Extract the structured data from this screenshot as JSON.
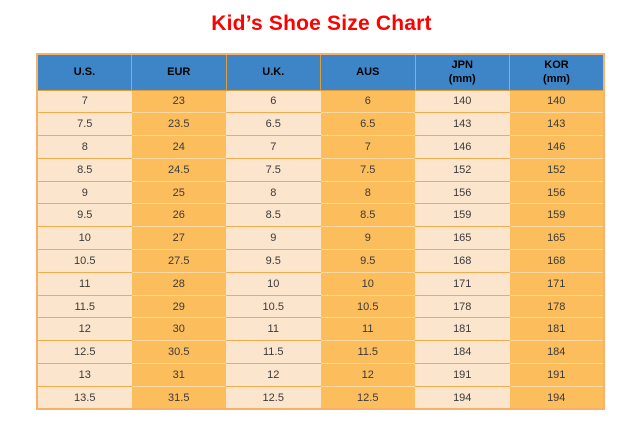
{
  "page": {
    "title": "Kid’s Shoe Size Chart"
  },
  "colors": {
    "title": "#ff0000",
    "header_bg": "#3d85c6",
    "column_light": "#fce5cd",
    "column_orange": "#fcbd5c",
    "table_border": "#f6b26b",
    "header_divider": "#dd9f3d",
    "row_divider_on_light": "#f2ab4e",
    "row_divider_on_orange": "#fdd9a2",
    "cell_text": "#3a3a3a"
  },
  "chart_data": {
    "type": "table",
    "title": "Kid’s Shoe Size Chart",
    "columns": [
      {
        "label": "U.S.",
        "sub": ""
      },
      {
        "label": "EUR",
        "sub": ""
      },
      {
        "label": "U.K.",
        "sub": ""
      },
      {
        "label": "AUS",
        "sub": ""
      },
      {
        "label": "JPN",
        "sub": "(mm)"
      },
      {
        "label": "KOR",
        "sub": "(mm)"
      }
    ],
    "rows": [
      [
        "7",
        "23",
        "6",
        "6",
        "140",
        "140"
      ],
      [
        "7.5",
        "23.5",
        "6.5",
        "6.5",
        "143",
        "143"
      ],
      [
        "8",
        "24",
        "7",
        "7",
        "146",
        "146"
      ],
      [
        "8.5",
        "24.5",
        "7.5",
        "7.5",
        "152",
        "152"
      ],
      [
        "9",
        "25",
        "8",
        "8",
        "156",
        "156"
      ],
      [
        "9.5",
        "26",
        "8.5",
        "8.5",
        "159",
        "159"
      ],
      [
        "10",
        "27",
        "9",
        "9",
        "165",
        "165"
      ],
      [
        "10.5",
        "27.5",
        "9.5",
        "9.5",
        "168",
        "168"
      ],
      [
        "11",
        "28",
        "10",
        "10",
        "171",
        "171"
      ],
      [
        "11.5",
        "29",
        "10.5",
        "10.5",
        "178",
        "178"
      ],
      [
        "12",
        "30",
        "11",
        "11",
        "181",
        "181"
      ],
      [
        "12.5",
        "30.5",
        "11.5",
        "11.5",
        "184",
        "184"
      ],
      [
        "13",
        "31",
        "12",
        "12",
        "191",
        "191"
      ],
      [
        "13.5",
        "31.5",
        "12.5",
        "12.5",
        "194",
        "194"
      ]
    ]
  }
}
